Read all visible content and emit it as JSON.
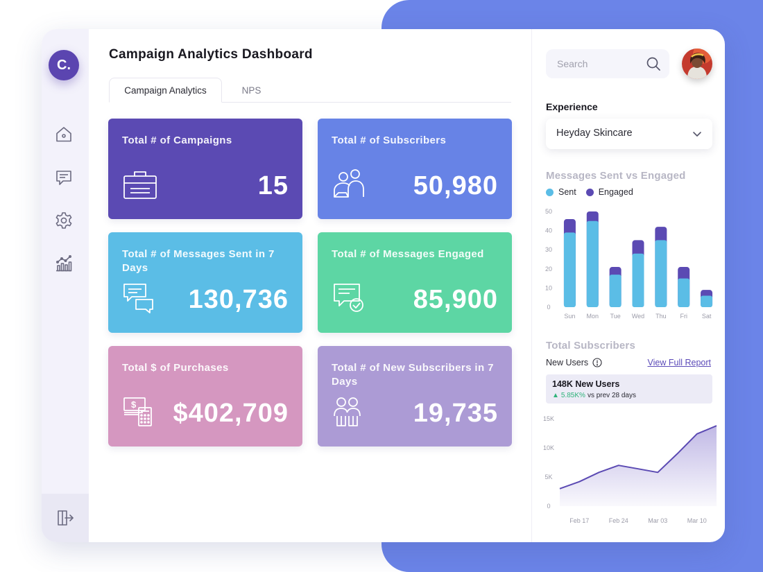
{
  "brand": {
    "logo_text": "C."
  },
  "header": {
    "title": "Campaign Analytics Dashboard"
  },
  "tabs": [
    {
      "label": "Campaign Analytics",
      "active": true
    },
    {
      "label": "NPS",
      "active": false
    }
  ],
  "sidebar": {
    "items": [
      {
        "icon": "home-icon"
      },
      {
        "icon": "chat-icon"
      },
      {
        "icon": "gear-icon"
      },
      {
        "icon": "analytics-icon"
      }
    ],
    "footer_icon": "logout-icon"
  },
  "cards": [
    {
      "label": "Total # of Campaigns",
      "value": "15",
      "color": "#5b4ab3",
      "icon": "briefcase-icon"
    },
    {
      "label": "Total # of Subscribers",
      "value": "50,980",
      "color": "#6783e6",
      "icon": "users-icon"
    },
    {
      "label": "Total # of Messages Sent in 7 Days",
      "value": "130,736",
      "color": "#5bbde6",
      "icon": "messages-icon"
    },
    {
      "label": "Total # of Messages Engaged",
      "value": "85,900",
      "color": "#5dd6a4",
      "icon": "message-check-icon"
    },
    {
      "label": "Total $ of Purchases",
      "value": "$402,709",
      "color": "#d597c0",
      "icon": "money-calculator-icon"
    },
    {
      "label": "Total # of New Subscribers in 7 Days",
      "value": "19,735",
      "color": "#ac9bd5",
      "icon": "new-users-icon"
    }
  ],
  "search": {
    "placeholder": "Search",
    "value": ""
  },
  "experience": {
    "title": "Experience",
    "selected": "Heyday Skincare"
  },
  "messages_chart": {
    "title": "Messages Sent vs Engaged",
    "legend": [
      "Sent",
      "Engaged"
    ],
    "colors": {
      "sent": "#5bbde6",
      "engaged": "#5b4ab3"
    }
  },
  "subscribers": {
    "title": "Total Subscribers",
    "new_users_label": "New Users",
    "report_link": "View Full Report",
    "summary_title": "148K New Users",
    "summary_change": "5.85K%",
    "summary_period": "vs prev 28 days",
    "line_color": "#5b4ab3"
  },
  "chart_data": [
    {
      "type": "bar",
      "stacked": true,
      "title": "Messages Sent vs Engaged",
      "categories": [
        "Sun",
        "Mon",
        "Tue",
        "Wed",
        "Thu",
        "Fri",
        "Sat"
      ],
      "series": [
        {
          "name": "Sent",
          "values": [
            39,
            45,
            17,
            28,
            35,
            15,
            6
          ]
        },
        {
          "name": "Engaged",
          "values": [
            7,
            5,
            4,
            7,
            7,
            6,
            3
          ]
        }
      ],
      "ylim": [
        0,
        50
      ],
      "yticks": [
        0,
        10,
        20,
        30,
        40,
        50
      ],
      "legend": "top-left",
      "grid": false
    },
    {
      "type": "area",
      "title": "Total Subscribers",
      "x": [
        "Feb 14",
        "Feb 17",
        "Feb 20",
        "Feb 24",
        "Feb 28",
        "Mar 03",
        "Mar 07",
        "Mar 10",
        "Mar 12"
      ],
      "xticks": [
        "Feb 17",
        "Feb 24",
        "Mar 03",
        "Mar 10"
      ],
      "series": [
        {
          "values": [
            3000,
            4200,
            5800,
            7000,
            6400,
            5800,
            9000,
            12400,
            13800
          ]
        }
      ],
      "ylim": [
        0,
        15000
      ],
      "yticks": [
        "0",
        "5K",
        "10K",
        "15K"
      ],
      "grid": false
    }
  ]
}
